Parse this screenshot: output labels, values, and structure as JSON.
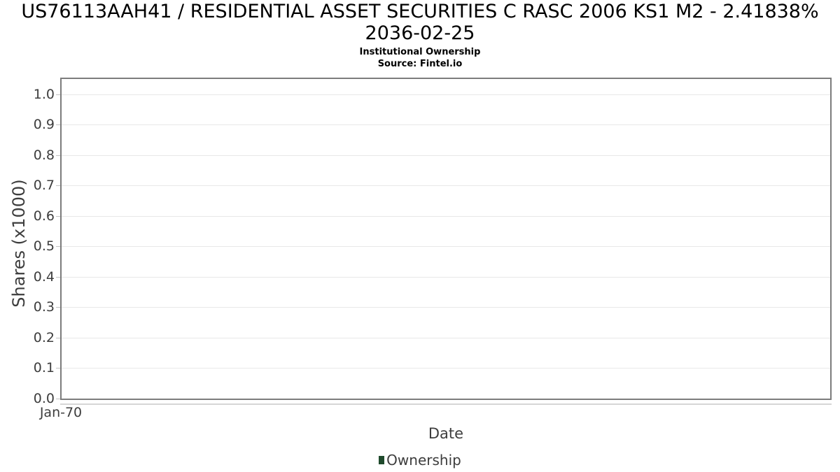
{
  "header": {
    "title_line1": "US76113AAH41 / RESIDENTIAL ASSET SECURITIES C RASC 2006 KS1 M2 - 2.41838%",
    "title_line2": "2036-02-25",
    "subtitle": "Institutional Ownership",
    "source": "Source: Fintel.io"
  },
  "chart_data": {
    "type": "bar",
    "title": "US76113AAH41 / RESIDENTIAL ASSET SECURITIES C RASC 2006 KS1 M2 - 2.41838% 2036-02-25",
    "subtitle": "Institutional Ownership",
    "source": "Source: Fintel.io",
    "xlabel": "Date",
    "ylabel": "Shares (x1000)",
    "x_ticks": [
      "Jan-70"
    ],
    "y_ticks": [
      "0.0",
      "0.1",
      "0.2",
      "0.3",
      "0.4",
      "0.5",
      "0.6",
      "0.7",
      "0.8",
      "0.9",
      "1.0"
    ],
    "ylim": [
      0,
      1.05
    ],
    "grid": "horizontal",
    "legend_position": "bottom-center",
    "legend": [
      {
        "label": "Ownership",
        "color": "#1f4a2c"
      }
    ],
    "series": [
      {
        "name": "Ownership",
        "x": [],
        "values": []
      }
    ]
  },
  "colors": {
    "plot_border": "#7c7c7c",
    "gridline": "#e8e8e8",
    "tick": "#c2c2c2",
    "axis_text": "#3d3d3d",
    "title_text": "#000000",
    "legend_green": "#1f4a2c",
    "subaxis_line": "#d6d6d6"
  }
}
